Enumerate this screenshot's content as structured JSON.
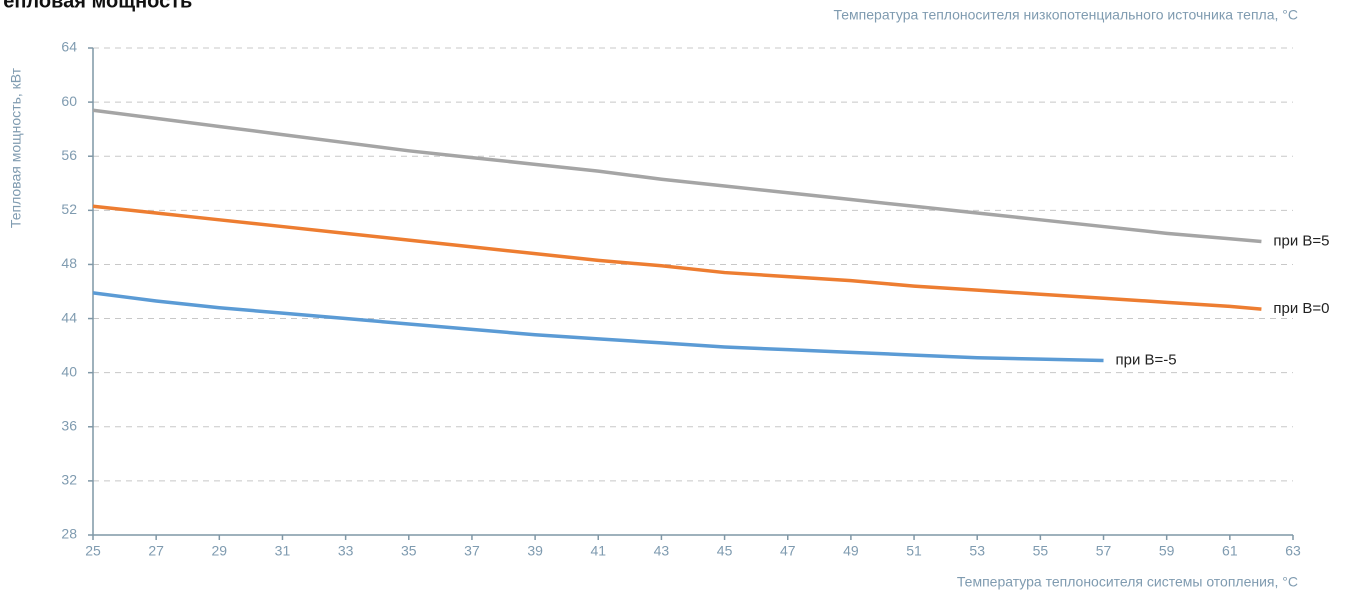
{
  "chart_data": {
    "type": "line",
    "title": "Тепловая мощность",
    "y_label": "Тепловая мощность, кВт",
    "x_label": "Температура теплоносителя системы отопления, °C",
    "legend_title": "Температура теплоносителя низкопотенциального источника тепла, °C",
    "xlim": [
      25,
      63
    ],
    "xticks": [
      25,
      27,
      29,
      31,
      33,
      35,
      37,
      39,
      41,
      43,
      45,
      47,
      49,
      51,
      53,
      55,
      57,
      59,
      61,
      63
    ],
    "ylim": [
      28,
      64
    ],
    "yticks": [
      28,
      32,
      36,
      40,
      44,
      48,
      52,
      56,
      60,
      64
    ],
    "grid": true,
    "series": [
      {
        "name": "при B=5",
        "color": "#a5a5a5",
        "x": [
          25,
          27,
          29,
          31,
          33,
          35,
          37,
          39,
          41,
          43,
          45,
          47,
          49,
          51,
          53,
          55,
          57,
          59,
          61,
          62
        ],
        "values": [
          59.4,
          58.8,
          58.2,
          57.6,
          57.0,
          56.4,
          55.9,
          55.4,
          54.9,
          54.3,
          53.8,
          53.3,
          52.8,
          52.3,
          51.8,
          51.3,
          50.8,
          50.3,
          49.9,
          49.7
        ]
      },
      {
        "name": "при B=0",
        "color": "#ed7d31",
        "x": [
          25,
          27,
          29,
          31,
          33,
          35,
          37,
          39,
          41,
          43,
          45,
          47,
          49,
          51,
          53,
          55,
          57,
          59,
          61,
          62
        ],
        "values": [
          52.3,
          51.8,
          51.3,
          50.8,
          50.3,
          49.8,
          49.3,
          48.8,
          48.3,
          47.9,
          47.4,
          47.1,
          46.8,
          46.4,
          46.1,
          45.8,
          45.5,
          45.2,
          44.9,
          44.7
        ]
      },
      {
        "name": "при B=-5",
        "color": "#5b9bd5",
        "x": [
          25,
          27,
          29,
          31,
          33,
          35,
          37,
          39,
          41,
          43,
          45,
          47,
          49,
          51,
          53,
          55,
          57
        ],
        "values": [
          45.9,
          45.3,
          44.8,
          44.4,
          44.0,
          43.6,
          43.2,
          42.8,
          42.5,
          42.2,
          41.9,
          41.7,
          41.5,
          41.3,
          41.1,
          41.0,
          40.9
        ]
      }
    ]
  }
}
